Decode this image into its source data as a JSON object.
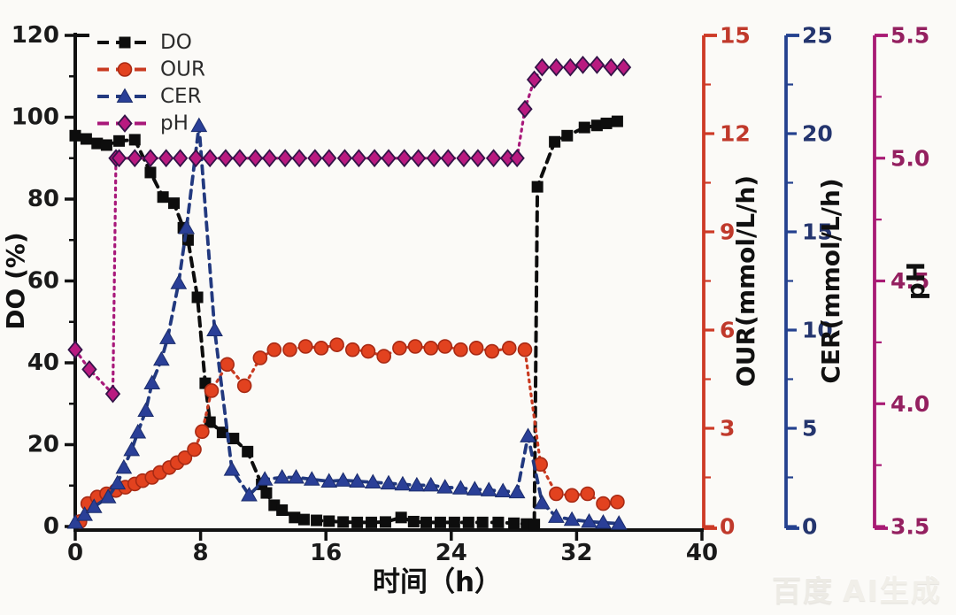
{
  "page": {
    "background": "#fbfaf7",
    "watermark": {
      "brand": "百度",
      "suffix": "AI生成"
    }
  },
  "chart_data": {
    "type": "line",
    "title": "",
    "xlabel": "时间（h）",
    "x_range": [
      0,
      40
    ],
    "x_ticks": [
      0,
      8,
      16,
      24,
      32,
      40
    ],
    "grid": false,
    "legend_position": "top-left",
    "axes": [
      {
        "id": "DO",
        "label": "DO (%)",
        "side": "left",
        "range": [
          0,
          120
        ],
        "ticks": [
          0,
          20,
          40,
          60,
          80,
          100,
          120
        ],
        "decimals": 0,
        "axis_color": "#111111",
        "tick_label_color": "#1a1a1a"
      },
      {
        "id": "OUR",
        "label": "OUR(mmol/L/h)",
        "side": "right",
        "range": [
          0,
          15
        ],
        "ticks": [
          0,
          3,
          6,
          9,
          12,
          15
        ],
        "decimals": 0,
        "axis_color": "#cd3a26",
        "tick_label_color": "#c0392b"
      },
      {
        "id": "CER",
        "label": "CER(mmol/L/h)",
        "side": "right",
        "range": [
          0,
          25
        ],
        "ticks": [
          0,
          5,
          10,
          15,
          20,
          25
        ],
        "decimals": 0,
        "axis_color": "#24418f",
        "tick_label_color": "#24356e"
      },
      {
        "id": "pH",
        "label": "pH",
        "side": "right",
        "range": [
          3.5,
          5.5
        ],
        "ticks": [
          3.5,
          4.0,
          4.5,
          5.0,
          5.5
        ],
        "decimals": 1,
        "axis_color": "#a81a74",
        "tick_label_color": "#942060"
      }
    ],
    "series": [
      {
        "name": "DO",
        "axis": "DO",
        "marker": "square",
        "marker_color": "#0d0d0d",
        "marker_edge": "#0d0d0d",
        "line_color": "#0d0d0d",
        "dash": "10 7",
        "line_width": 4,
        "points": [
          [
            0,
            95.5
          ],
          [
            0.7,
            94.7
          ],
          [
            1.4,
            93.6
          ],
          [
            2.0,
            93.2
          ],
          [
            2.8,
            94.2
          ],
          [
            3.8,
            94.5
          ],
          [
            4.8,
            86.5
          ],
          [
            5.6,
            80.5
          ],
          [
            6.3,
            79
          ],
          [
            6.9,
            73
          ],
          [
            7.2,
            70
          ],
          [
            7.8,
            56
          ],
          [
            8.3,
            35
          ],
          [
            8.6,
            25.5
          ],
          [
            9.4,
            23
          ],
          [
            10.1,
            21.5
          ],
          [
            11.0,
            18.3
          ],
          [
            11.9,
            10.3
          ],
          [
            12.2,
            8.2
          ],
          [
            12.7,
            5.2
          ],
          [
            13.2,
            4.0
          ],
          [
            14.0,
            2.2
          ],
          [
            14.6,
            1.7
          ],
          [
            15.4,
            1.5
          ],
          [
            16.2,
            1.3
          ],
          [
            17.1,
            1.1
          ],
          [
            18.0,
            1.0
          ],
          [
            18.9,
            1.0
          ],
          [
            19.8,
            1.1
          ],
          [
            20.8,
            2.2
          ],
          [
            21.6,
            1.2
          ],
          [
            22.4,
            1.0
          ],
          [
            23.3,
            1.0
          ],
          [
            24.2,
            1.0
          ],
          [
            25.1,
            1.0
          ],
          [
            26.0,
            1.0
          ],
          [
            27.0,
            1.0
          ],
          [
            28.0,
            0.8
          ],
          [
            28.8,
            0.6
          ],
          [
            29.3,
            0.5
          ],
          [
            29.5,
            83
          ],
          [
            30.6,
            94
          ],
          [
            31.4,
            95.5
          ],
          [
            32.5,
            97.5
          ],
          [
            33.3,
            98
          ],
          [
            33.9,
            98.5
          ],
          [
            34.6,
            99
          ]
        ]
      },
      {
        "name": "OUR",
        "axis": "OUR",
        "marker": "circle",
        "marker_color": "#e2421f",
        "marker_edge": "#a82a14",
        "line_color": "#c93a20",
        "dash": "2.5 5.5",
        "line_width": 3.2,
        "points": [
          [
            0.3,
            0.15
          ],
          [
            0.8,
            0.7
          ],
          [
            1.4,
            0.9
          ],
          [
            2.0,
            1.0
          ],
          [
            2.6,
            1.1
          ],
          [
            3.2,
            1.2
          ],
          [
            3.8,
            1.3
          ],
          [
            4.3,
            1.4
          ],
          [
            4.9,
            1.5
          ],
          [
            5.4,
            1.65
          ],
          [
            6.0,
            1.8
          ],
          [
            6.5,
            1.95
          ],
          [
            7.0,
            2.1
          ],
          [
            7.6,
            2.35
          ],
          [
            8.1,
            2.9
          ],
          [
            8.7,
            4.15
          ],
          [
            9.7,
            4.95
          ],
          [
            10.8,
            4.3
          ],
          [
            11.8,
            5.15
          ],
          [
            12.7,
            5.4
          ],
          [
            13.7,
            5.4
          ],
          [
            14.7,
            5.5
          ],
          [
            15.7,
            5.45
          ],
          [
            16.7,
            5.55
          ],
          [
            17.7,
            5.4
          ],
          [
            18.7,
            5.35
          ],
          [
            19.7,
            5.2
          ],
          [
            20.7,
            5.45
          ],
          [
            21.7,
            5.5
          ],
          [
            22.7,
            5.45
          ],
          [
            23.6,
            5.5
          ],
          [
            24.6,
            5.4
          ],
          [
            25.6,
            5.45
          ],
          [
            26.6,
            5.35
          ],
          [
            27.7,
            5.45
          ],
          [
            28.7,
            5.4
          ],
          [
            29.7,
            1.9
          ],
          [
            30.7,
            1.0
          ],
          [
            31.7,
            0.95
          ],
          [
            32.7,
            1.0
          ],
          [
            33.7,
            0.7
          ],
          [
            34.6,
            0.75
          ]
        ]
      },
      {
        "name": "CER",
        "axis": "CER",
        "marker": "triangle",
        "marker_color": "#2a3f97",
        "marker_edge": "#1b2c6b",
        "line_color": "#22397f",
        "dash": "9 7",
        "line_width": 3.8,
        "points": [
          [
            0,
            0.2
          ],
          [
            0.6,
            0.6
          ],
          [
            1.2,
            1.0
          ],
          [
            2.1,
            1.5
          ],
          [
            2.7,
            2.2
          ],
          [
            3.1,
            3.0
          ],
          [
            3.6,
            3.9
          ],
          [
            4.0,
            4.8
          ],
          [
            4.5,
            5.9
          ],
          [
            4.9,
            7.3
          ],
          [
            5.5,
            8.5
          ],
          [
            5.9,
            9.6
          ],
          [
            6.6,
            12.4
          ],
          [
            7.1,
            15.2
          ],
          [
            7.9,
            20.4
          ],
          [
            8.9,
            10.0
          ],
          [
            10.0,
            2.9
          ],
          [
            11.1,
            1.6
          ],
          [
            12.1,
            2.4
          ],
          [
            13.2,
            2.5
          ],
          [
            14.1,
            2.5
          ],
          [
            15.1,
            2.4
          ],
          [
            16.2,
            2.3
          ],
          [
            17.1,
            2.35
          ],
          [
            18.0,
            2.3
          ],
          [
            19.0,
            2.25
          ],
          [
            20.0,
            2.2
          ],
          [
            20.9,
            2.15
          ],
          [
            21.8,
            2.1
          ],
          [
            22.7,
            2.1
          ],
          [
            23.6,
            2.0
          ],
          [
            24.6,
            1.95
          ],
          [
            25.5,
            1.9
          ],
          [
            26.4,
            1.85
          ],
          [
            27.3,
            1.8
          ],
          [
            28.2,
            1.75
          ],
          [
            28.9,
            4.6
          ],
          [
            29.8,
            1.2
          ],
          [
            30.7,
            0.5
          ],
          [
            31.7,
            0.35
          ],
          [
            32.8,
            0.25
          ],
          [
            33.7,
            0.2
          ],
          [
            34.7,
            0.15
          ]
        ]
      },
      {
        "name": "pH",
        "axis": "pH",
        "marker": "diamond",
        "marker_color": "#b91a80",
        "marker_edge": "#341448",
        "line_color": "#a8187a",
        "dash": "2.5 5.5",
        "line_width": 3.2,
        "points": [
          [
            0,
            4.22
          ],
          [
            0.9,
            4.14
          ],
          [
            2.4,
            4.04
          ],
          [
            2.6,
            5.0
          ],
          [
            2.8,
            5.0
          ],
          [
            3.8,
            5.0
          ],
          [
            4.8,
            5.0
          ],
          [
            5.8,
            5.0
          ],
          [
            6.7,
            5.0
          ],
          [
            7.7,
            5.0
          ],
          [
            8.6,
            5.0
          ],
          [
            9.6,
            5.0
          ],
          [
            10.5,
            5.0
          ],
          [
            11.5,
            5.0
          ],
          [
            12.4,
            5.0
          ],
          [
            13.4,
            5.0
          ],
          [
            14.3,
            5.0
          ],
          [
            15.3,
            5.0
          ],
          [
            16.2,
            5.0
          ],
          [
            17.2,
            5.0
          ],
          [
            18.1,
            5.0
          ],
          [
            19.1,
            5.0
          ],
          [
            20.0,
            5.0
          ],
          [
            21.0,
            5.0
          ],
          [
            21.9,
            5.0
          ],
          [
            22.9,
            5.0
          ],
          [
            23.8,
            5.0
          ],
          [
            24.8,
            5.0
          ],
          [
            25.7,
            5.0
          ],
          [
            26.7,
            5.0
          ],
          [
            27.6,
            5.0
          ],
          [
            28.2,
            5.0
          ],
          [
            28.7,
            5.2
          ],
          [
            29.3,
            5.32
          ],
          [
            29.8,
            5.37
          ],
          [
            30.7,
            5.37
          ],
          [
            31.6,
            5.37
          ],
          [
            32.4,
            5.38
          ],
          [
            33.3,
            5.38
          ],
          [
            34.2,
            5.37
          ],
          [
            35.0,
            5.37
          ]
        ]
      }
    ]
  }
}
